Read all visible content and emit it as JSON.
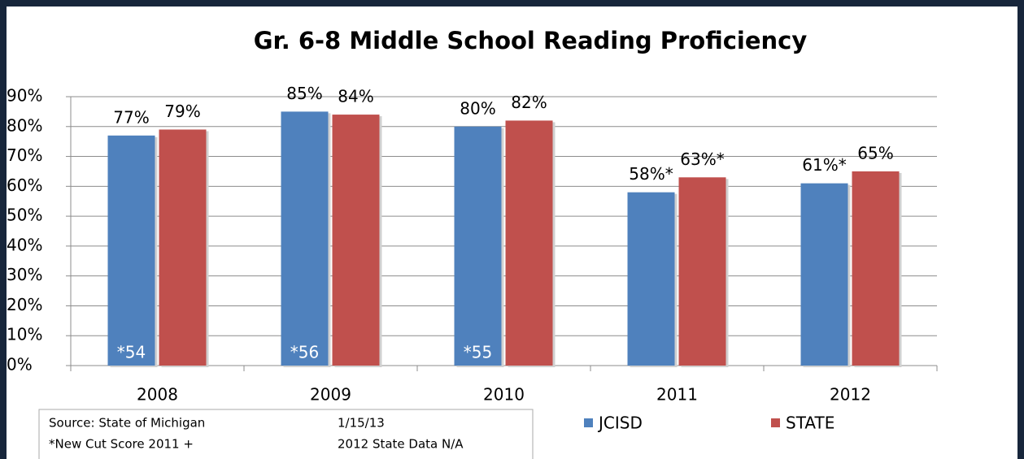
{
  "chart_data": {
    "type": "bar",
    "title": "Gr. 6-8 Middle School Reading Proficiency",
    "categories": [
      "2008",
      "2009",
      "2010",
      "2011",
      "2012"
    ],
    "series": [
      {
        "name": "JCISD",
        "color": "#4f81bd",
        "values": [
          77,
          85,
          80,
          58,
          61
        ],
        "value_labels": [
          "77%",
          "85%",
          "80%",
          "58%*",
          "61%*"
        ]
      },
      {
        "name": "STATE",
        "color": "#c0504d",
        "values": [
          79,
          84,
          82,
          63,
          65
        ],
        "value_labels": [
          "79%",
          "84%",
          "82%",
          "63%*",
          "65%"
        ]
      }
    ],
    "bar_annotations": [
      "*54",
      "*56",
      "*55"
    ],
    "ylim": [
      0,
      90
    ],
    "yticks": [
      {
        "value": 0,
        "label": "0%"
      },
      {
        "value": 10,
        "label": "10%"
      },
      {
        "value": 20,
        "label": "20%"
      },
      {
        "value": 30,
        "label": "30%"
      },
      {
        "value": 40,
        "label": "40%"
      },
      {
        "value": 50,
        "label": "50%"
      },
      {
        "value": 60,
        "label": "60%"
      },
      {
        "value": 70,
        "label": "70%"
      },
      {
        "value": 80,
        "label": "80%"
      },
      {
        "value": 90,
        "label": "90%"
      }
    ],
    "grid": true,
    "legend": "bottom",
    "notes": [
      "Source:  State of Michigan",
      "1/15/13",
      "*New Cut Score 2011 +",
      "2012 State Data N/A"
    ]
  }
}
